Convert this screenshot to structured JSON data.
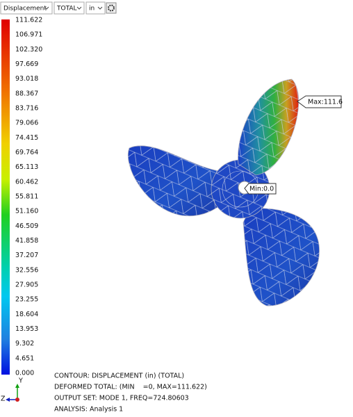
{
  "toolbar": {
    "result": "Displacement",
    "component": "TOTAL",
    "units": "in"
  },
  "legend": {
    "labels": [
      "111.622",
      "106.971",
      "102.320",
      "97.669",
      "93.018",
      "88.367",
      "83.716",
      "79.066",
      "74.415",
      "69.764",
      "65.113",
      "60.462",
      "55.811",
      "51.160",
      "46.509",
      "41.858",
      "37.207",
      "32.556",
      "27.905",
      "23.255",
      "18.604",
      "13.953",
      "9.302",
      "4.651",
      "0.000"
    ]
  },
  "annotations": {
    "max": "Max:111.6",
    "min": "Min:0.0"
  },
  "info": {
    "lines": [
      "CONTOUR: DISPLACEMENT (in) (TOTAL)",
      "DEFORMED TOTAL: (MIN    =0, MAX=111.622)",
      "OUTPUT SET: MODE 1, FREQ=724.80603",
      "ANALYSIS: Analysis 1"
    ]
  },
  "triad": {
    "y": "Y",
    "z": "Z"
  }
}
